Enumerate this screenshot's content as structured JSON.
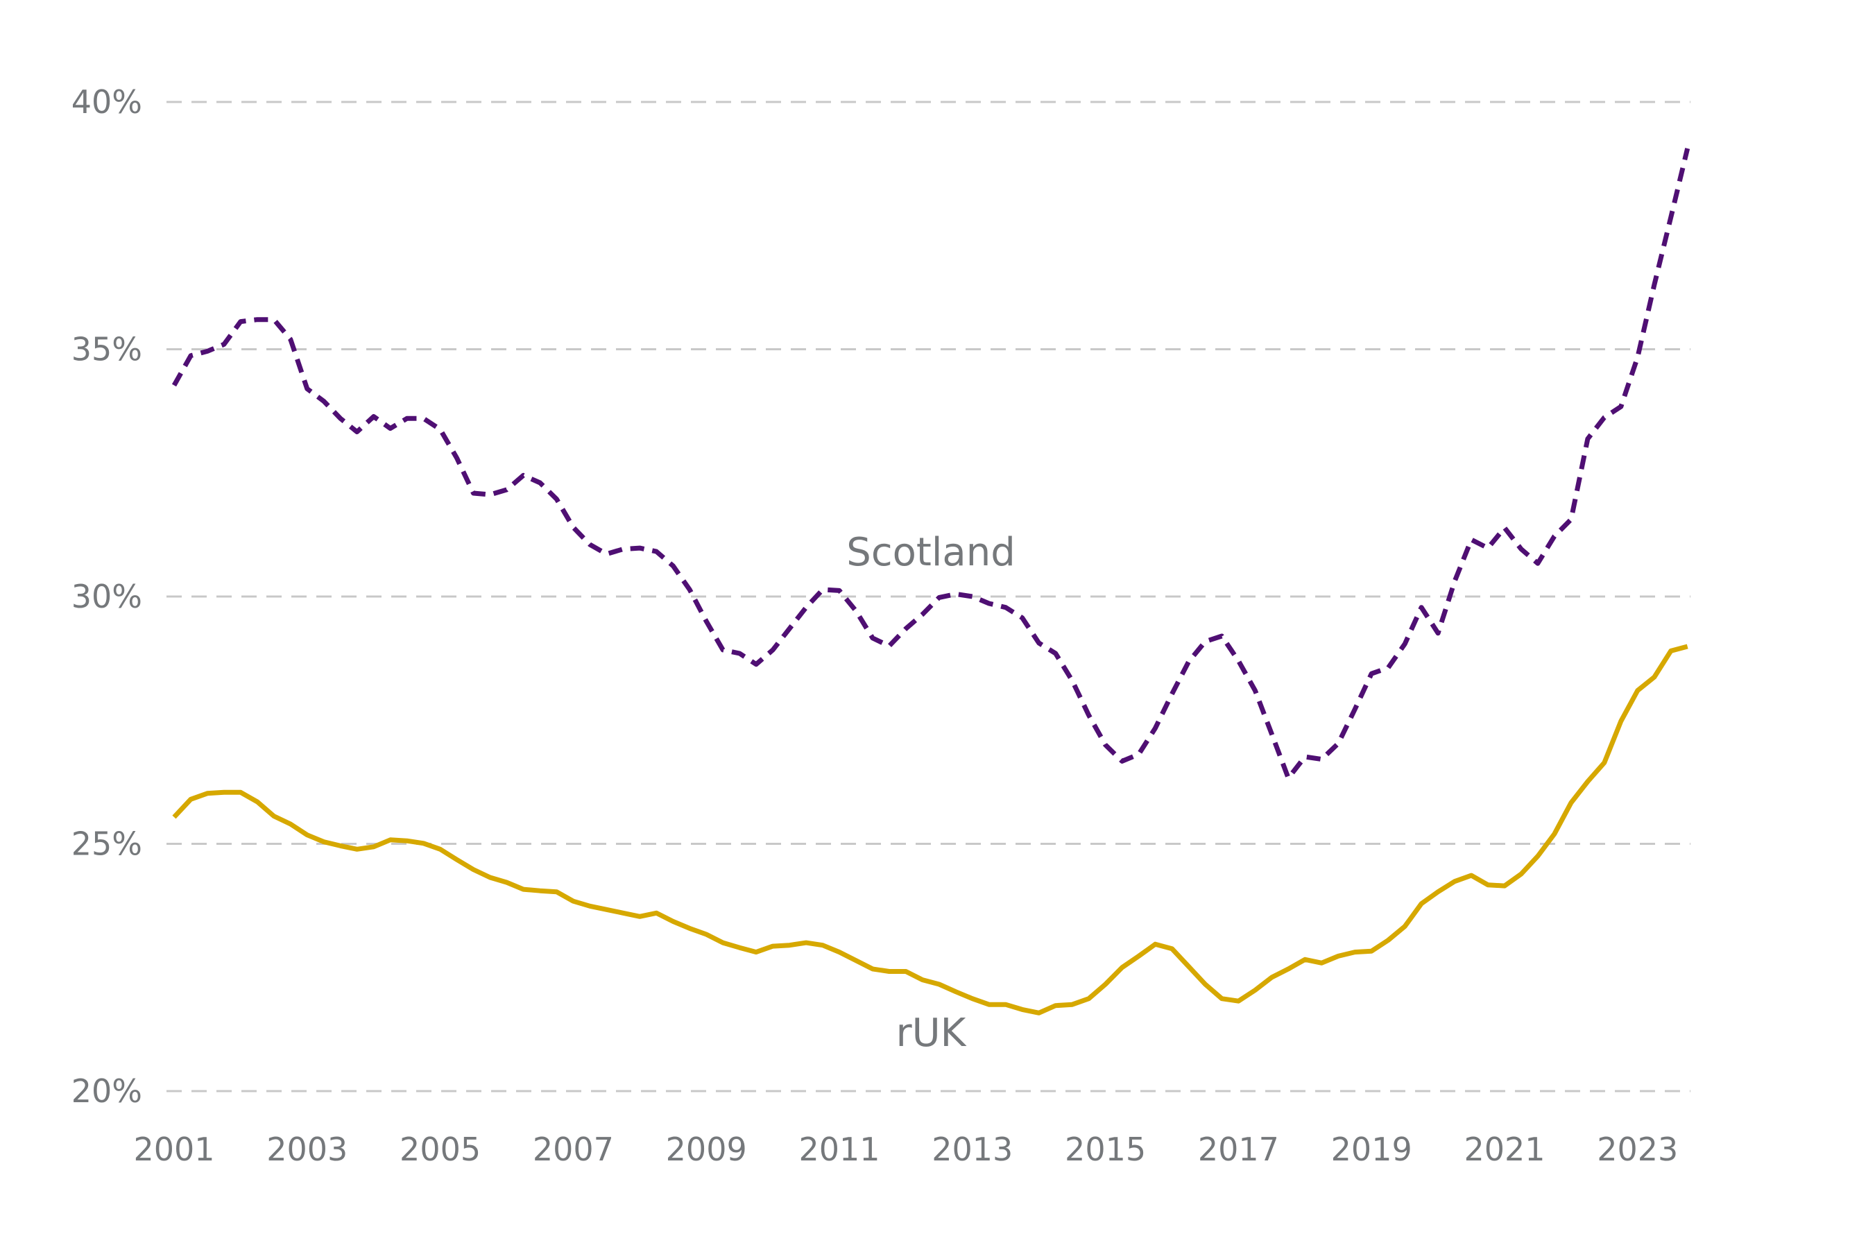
{
  "chart_data": {
    "type": "line",
    "title": "",
    "xlabel": "",
    "ylabel": "",
    "xlim": [
      2001,
      2023.75
    ],
    "ylim": [
      20,
      40
    ],
    "grid": "horizontal dashed",
    "legend": "inline labels",
    "y_ticks": [
      "20%",
      "25%",
      "30%",
      "35%",
      "40%"
    ],
    "y_tick_values": [
      20,
      25,
      30,
      35,
      40
    ],
    "x_ticks": [
      "2001",
      "2003",
      "2005",
      "2007",
      "2009",
      "2011",
      "2013",
      "2015",
      "2017",
      "2019",
      "2021",
      "2023"
    ],
    "x_tick_values": [
      2001,
      2003,
      2005,
      2007,
      2009,
      2011,
      2013,
      2015,
      2017,
      2019,
      2021,
      2023
    ],
    "x": [
      2001,
      2001.25,
      2001.5,
      2001.75,
      2002,
      2002.25,
      2002.5,
      2002.75,
      2003,
      2003.25,
      2003.5,
      2003.75,
      2004,
      2004.25,
      2004.5,
      2004.75,
      2005,
      2005.25,
      2005.5,
      2005.75,
      2006,
      2006.25,
      2006.5,
      2006.75,
      2007,
      2007.25,
      2007.5,
      2007.75,
      2008,
      2008.25,
      2008.5,
      2008.75,
      2009,
      2009.25,
      2009.5,
      2009.75,
      2010,
      2010.25,
      2010.5,
      2010.75,
      2011,
      2011.25,
      2011.5,
      2011.75,
      2012,
      2012.25,
      2012.5,
      2012.75,
      2013,
      2013.25,
      2013.5,
      2013.75,
      2014,
      2014.25,
      2014.5,
      2014.75,
      2015,
      2015.25,
      2015.5,
      2015.75,
      2016,
      2016.25,
      2016.5,
      2016.75,
      2017,
      2017.25,
      2017.5,
      2017.75,
      2018,
      2018.25,
      2018.5,
      2018.75,
      2019,
      2019.25,
      2019.5,
      2019.75,
      2020,
      2020.25,
      2020.5,
      2020.75,
      2021,
      2021.25,
      2021.5,
      2021.75,
      2022,
      2022.25,
      2022.5,
      2022.75,
      2023,
      2023.25,
      2023.5,
      2023.75
    ],
    "series": [
      {
        "name": "Scotland",
        "color": "#4f0f73",
        "style": "dashed",
        "values": [
          34.27,
          34.87,
          34.96,
          35.1,
          35.56,
          35.6,
          35.6,
          35.2,
          34.2,
          33.95,
          33.6,
          33.33,
          33.64,
          33.4,
          33.6,
          33.6,
          33.38,
          32.8,
          32.09,
          32.06,
          32.16,
          32.45,
          32.3,
          31.97,
          31.4,
          31.05,
          30.86,
          30.96,
          30.98,
          30.91,
          30.62,
          30.14,
          29.5,
          28.92,
          28.85,
          28.63,
          28.92,
          29.35,
          29.78,
          30.14,
          30.12,
          29.71,
          29.16,
          29.0,
          29.35,
          29.64,
          29.98,
          30.05,
          30.0,
          29.86,
          29.78,
          29.57,
          29.06,
          28.85,
          28.3,
          27.6,
          27.0,
          26.67,
          26.81,
          27.34,
          28.03,
          28.68,
          29.09,
          29.2,
          28.7,
          28.1,
          27.22,
          26.33,
          26.76,
          26.71,
          27.03,
          27.72,
          28.44,
          28.56,
          29.04,
          29.78,
          29.26,
          30.31,
          31.15,
          30.98,
          31.39,
          30.96,
          30.67,
          31.22,
          31.56,
          33.19,
          33.62,
          33.84,
          34.84,
          36.3,
          37.67,
          39.06
        ]
      },
      {
        "name": "rUK",
        "color": "#d6a800",
        "style": "solid",
        "values": [
          25.54,
          25.9,
          26.02,
          26.04,
          26.04,
          25.85,
          25.56,
          25.4,
          25.18,
          25.04,
          24.96,
          24.89,
          24.94,
          25.08,
          25.06,
          25.01,
          24.89,
          24.68,
          24.48,
          24.32,
          24.22,
          24.08,
          24.05,
          24.03,
          23.84,
          23.74,
          23.67,
          23.6,
          23.53,
          23.6,
          23.43,
          23.29,
          23.17,
          23.0,
          22.9,
          22.81,
          22.93,
          22.95,
          23.0,
          22.95,
          22.81,
          22.64,
          22.47,
          22.42,
          22.42,
          22.25,
          22.16,
          22.01,
          21.87,
          21.75,
          21.75,
          21.65,
          21.58,
          21.73,
          21.75,
          21.87,
          22.16,
          22.5,
          22.73,
          22.97,
          22.88,
          22.52,
          22.16,
          21.87,
          21.82,
          22.04,
          22.3,
          22.47,
          22.66,
          22.59,
          22.73,
          22.81,
          22.83,
          23.05,
          23.33,
          23.79,
          24.03,
          24.24,
          24.36,
          24.17,
          24.15,
          24.39,
          24.75,
          25.2,
          25.83,
          26.26,
          26.64,
          27.48,
          28.1,
          28.37,
          28.9,
          28.99
        ]
      }
    ],
    "annotations": [
      "Scotland",
      "rUK"
    ]
  }
}
